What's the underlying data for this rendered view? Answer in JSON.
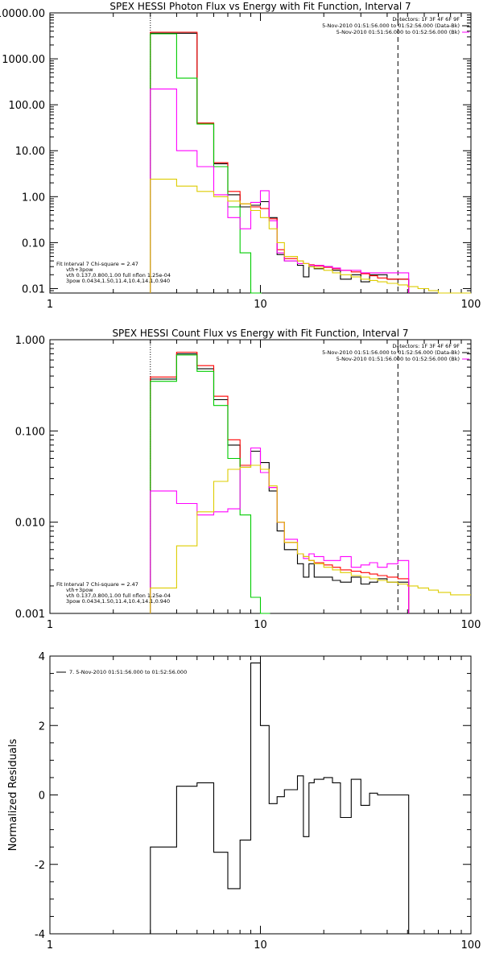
{
  "chart_data": [
    {
      "type": "line",
      "title": "SPEX HESSI Photon Flux vs Energy with Fit Function, Interval 7",
      "xscale": "log",
      "yscale": "log",
      "xlim": [
        1,
        100
      ],
      "ylim": [
        0.008,
        10000
      ],
      "x_tick_labels": [
        "1",
        "10",
        "100"
      ],
      "x_ticks": [
        1,
        10,
        100
      ],
      "y_tick_labels": [
        "10000.00",
        "1000.00",
        "100.00",
        "10.00",
        "1.00",
        "0.10",
        "0.01"
      ],
      "y_ticks": [
        10000,
        1000,
        100,
        10,
        1,
        0.1,
        0.01
      ],
      "vlines": [
        {
          "x": 3,
          "style": "dotted"
        },
        {
          "x": 45,
          "style": "dashed"
        }
      ],
      "legend_top_right": [
        {
          "text": "Detectors: 1F 3F 4F 6F 9F",
          "color": ""
        },
        {
          "text": "5-Nov-2010 01:51:56.000 to 01:52:56.000 (Data-Bk)",
          "color": "#000000"
        },
        {
          "text": "5-Nov-2010 01:51:56.000 to 01:52:56.000 (Bk)",
          "color": "#ff00ff"
        }
      ],
      "legend_bottom_left": [
        {
          "text": "Fit Interval  7   Chi-square = 2.47",
          "color": ""
        },
        {
          "text": "vth+3pow",
          "color": "#ff0000"
        },
        {
          "text": "vth 0.137,0.800,1.00  full nflon 1.25e-04",
          "color": "#00cc00"
        },
        {
          "text": "3pow 0.0434,1.50,11.4,10.4,14.1,0.940",
          "color": "#ddcc00"
        }
      ],
      "series": [
        {
          "color": "#000000",
          "x": [
            3,
            4,
            5,
            6,
            7,
            8,
            9,
            10,
            11,
            12,
            13,
            15,
            16,
            17,
            18,
            20,
            22,
            24,
            27,
            30,
            33,
            36,
            40,
            45
          ],
          "values": [
            3600,
            3600,
            40,
            5.2,
            1.1,
            0.6,
            0.65,
            0.78,
            0.35,
            0.055,
            0.04,
            0.032,
            0.018,
            0.03,
            0.027,
            0.03,
            0.025,
            0.016,
            0.02,
            0.014,
            0.02,
            0.02,
            0.016,
            0.016
          ]
        },
        {
          "color": "#ff0000",
          "x": [
            3,
            4,
            5,
            6,
            7,
            8,
            9,
            10,
            11,
            12,
            13,
            15,
            16,
            17,
            18,
            20,
            22,
            24,
            27,
            30,
            33,
            36,
            40,
            45
          ],
          "values": [
            3800,
            3800,
            40,
            5.5,
            1.3,
            0.7,
            0.6,
            0.55,
            0.33,
            0.07,
            0.045,
            0.04,
            0.035,
            0.033,
            0.031,
            0.029,
            0.027,
            0.025,
            0.023,
            0.021,
            0.019,
            0.017,
            0.016,
            0.016
          ]
        },
        {
          "color": "#00cc00",
          "x": [
            3,
            4,
            5,
            6,
            7,
            8,
            9
          ],
          "values": [
            3500,
            380,
            38,
            4.5,
            0.6,
            0.06,
            0.008
          ]
        },
        {
          "color": "#ff00ff",
          "x": [
            3,
            4,
            5,
            6,
            7,
            8,
            9,
            10,
            11,
            12,
            13,
            15,
            16,
            17,
            18,
            20,
            22,
            24,
            27,
            30,
            33,
            36,
            40,
            45
          ],
          "values": [
            220,
            10,
            4.5,
            1.1,
            0.35,
            0.2,
            0.75,
            1.35,
            0.3,
            0.06,
            0.04,
            0.035,
            0.035,
            0.032,
            0.032,
            0.03,
            0.028,
            0.025,
            0.025,
            0.022,
            0.022,
            0.022,
            0.022,
            0.022
          ]
        },
        {
          "color": "#ddcc00",
          "x": [
            3,
            4,
            5,
            6,
            7,
            8,
            9,
            10,
            11,
            12,
            13,
            15,
            16,
            17,
            18,
            20,
            22,
            24,
            27,
            30,
            33,
            36,
            40,
            45,
            50,
            56,
            63,
            70,
            80,
            90
          ],
          "values": [
            2.4,
            1.7,
            1.3,
            1.0,
            0.8,
            0.7,
            0.5,
            0.35,
            0.2,
            0.1,
            0.05,
            0.04,
            0.035,
            0.03,
            0.028,
            0.025,
            0.022,
            0.02,
            0.018,
            0.016,
            0.015,
            0.014,
            0.013,
            0.012,
            0.011,
            0.01,
            0.009,
            0.008,
            0.008,
            0.008
          ]
        }
      ]
    },
    {
      "type": "line",
      "title": "SPEX HESSI Count Flux vs Energy with Fit Function, Interval 7",
      "xscale": "log",
      "yscale": "log",
      "xlim": [
        1,
        100
      ],
      "ylim": [
        0.001,
        1.0
      ],
      "x_tick_labels": [
        "1",
        "10",
        "100"
      ],
      "x_ticks": [
        1,
        10,
        100
      ],
      "y_tick_labels": [
        "1.000",
        "0.100",
        "0.010",
        "0.001"
      ],
      "y_ticks": [
        1.0,
        0.1,
        0.01,
        0.001
      ],
      "vlines": [
        {
          "x": 3,
          "style": "dotted"
        },
        {
          "x": 45,
          "style": "dashed"
        }
      ],
      "legend_top_right": [
        {
          "text": "Detectors: 1F 3F 4F 6F 9F",
          "color": ""
        },
        {
          "text": "5-Nov-2010 01:51:56.000 to 01:52:56.000 (Data-Bk)",
          "color": "#000000"
        },
        {
          "text": "5-Nov-2010 01:51:56.000 to 01:52:56.000 (Bk)",
          "color": "#ff00ff"
        }
      ],
      "legend_bottom_left": [
        {
          "text": "Fit Interval  7   Chi-square = 2.47",
          "color": ""
        },
        {
          "text": "vth+3pow",
          "color": "#ff0000"
        },
        {
          "text": "vth 0.137,0.800,1.00  full nflon 1.25e-04",
          "color": "#00cc00"
        },
        {
          "text": "3pow 0.0434,1.50,11.4,10.4,14.1,0.940",
          "color": "#ddcc00"
        }
      ],
      "series": [
        {
          "color": "#000000",
          "x": [
            3,
            4,
            5,
            6,
            7,
            8,
            9,
            10,
            11,
            12,
            13,
            15,
            16,
            17,
            18,
            20,
            22,
            24,
            27,
            30,
            33,
            36,
            40,
            45
          ],
          "values": [
            0.37,
            0.7,
            0.48,
            0.22,
            0.07,
            0.04,
            0.06,
            0.045,
            0.022,
            0.008,
            0.005,
            0.0035,
            0.0025,
            0.0035,
            0.0025,
            0.0025,
            0.0023,
            0.0022,
            0.0025,
            0.0021,
            0.0022,
            0.0024,
            0.0022,
            0.0022
          ]
        },
        {
          "color": "#ff0000",
          "x": [
            3,
            4,
            5,
            6,
            7,
            8,
            9,
            10,
            11,
            12,
            13,
            15,
            16,
            17,
            18,
            20,
            22,
            24,
            27,
            30,
            33,
            36,
            40,
            45
          ],
          "values": [
            0.39,
            0.73,
            0.52,
            0.24,
            0.08,
            0.042,
            0.042,
            0.038,
            0.024,
            0.01,
            0.006,
            0.0045,
            0.0042,
            0.0038,
            0.0036,
            0.0034,
            0.0032,
            0.003,
            0.0029,
            0.0028,
            0.0027,
            0.0026,
            0.0025,
            0.0024
          ]
        },
        {
          "color": "#00cc00",
          "x": [
            3,
            4,
            5,
            6,
            7,
            8,
            9,
            10
          ],
          "values": [
            0.35,
            0.68,
            0.45,
            0.19,
            0.05,
            0.012,
            0.0015,
            0.001
          ]
        },
        {
          "color": "#ff00ff",
          "x": [
            3,
            4,
            5,
            6,
            7,
            8,
            9,
            10,
            11,
            12,
            13,
            15,
            16,
            17,
            18,
            20,
            22,
            24,
            27,
            30,
            33,
            36,
            40,
            45
          ],
          "values": [
            0.022,
            0.016,
            0.012,
            0.013,
            0.014,
            0.04,
            0.065,
            0.035,
            0.024,
            0.01,
            0.0065,
            0.0045,
            0.004,
            0.0045,
            0.0042,
            0.0038,
            0.0038,
            0.0042,
            0.0032,
            0.0034,
            0.0036,
            0.0032,
            0.0035,
            0.0038
          ]
        },
        {
          "color": "#ddcc00",
          "x": [
            3,
            4,
            5,
            6,
            7,
            8,
            9,
            10,
            11,
            12,
            13,
            15,
            16,
            17,
            18,
            20,
            22,
            24,
            27,
            30,
            33,
            36,
            40,
            45,
            50,
            56,
            63,
            70,
            80,
            90
          ],
          "values": [
            0.0019,
            0.0055,
            0.013,
            0.028,
            0.038,
            0.04,
            0.042,
            0.038,
            0.025,
            0.01,
            0.006,
            0.0045,
            0.0042,
            0.0038,
            0.0035,
            0.0032,
            0.003,
            0.0028,
            0.0026,
            0.0025,
            0.0024,
            0.0023,
            0.0022,
            0.0021,
            0.002,
            0.0019,
            0.0018,
            0.0017,
            0.0016,
            0.0016
          ]
        }
      ]
    },
    {
      "type": "line",
      "title": "",
      "xscale": "log",
      "yscale": "linear",
      "xlim": [
        1,
        100
      ],
      "ylim": [
        -4,
        4
      ],
      "ylabel": "Normalized Residuals",
      "x_tick_labels": [
        "1",
        "10",
        "100"
      ],
      "x_ticks": [
        1,
        10,
        100
      ],
      "y_tick_labels": [
        "4",
        "2",
        "0",
        "-2",
        "-4"
      ],
      "y_ticks": [
        4,
        2,
        0,
        -2,
        -4
      ],
      "legend_top_left": [
        {
          "text": "7.  5-Nov-2010 01:51:56.000 to 01:52:56.000",
          "color": "#000000"
        }
      ],
      "series": [
        {
          "name": "7.  5-Nov-2010 01:51:56.000 to 01:52:56.000",
          "color": "#000000",
          "x": [
            3,
            4,
            5,
            6,
            7,
            8,
            9,
            10,
            11,
            12,
            13,
            15,
            16,
            17,
            18,
            20,
            22,
            24,
            27,
            30,
            33,
            36,
            40,
            45
          ],
          "values": [
            -1.5,
            0.25,
            0.35,
            -1.65,
            -2.7,
            -1.3,
            3.8,
            2.0,
            -0.25,
            -0.05,
            0.15,
            0.55,
            -1.2,
            0.35,
            0.45,
            0.5,
            0.35,
            -0.65,
            0.45,
            -0.3,
            0.05,
            0.0,
            0.0,
            0.0
          ]
        }
      ]
    }
  ]
}
